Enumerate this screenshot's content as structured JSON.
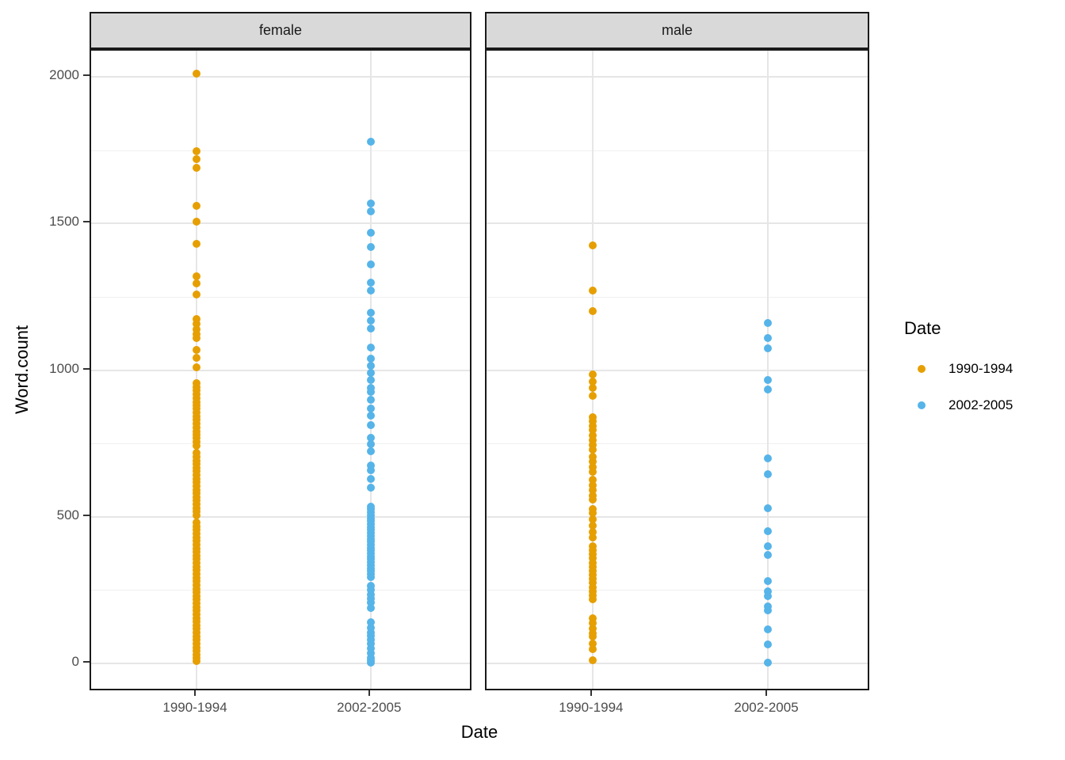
{
  "chart_data": {
    "type": "scatter",
    "title": "",
    "xlabel": "Date",
    "ylabel": "Word.count",
    "categories": [
      "1990-1994",
      "2002-2005"
    ],
    "y_ticks": [
      0,
      500,
      1000,
      1500,
      2000
    ],
    "y_minor_ticks": [
      250,
      750,
      1250,
      1750
    ],
    "ylim": [
      -95,
      2090
    ],
    "grid": "major+minor horizontal, major vertical at categories",
    "legend_position": "right",
    "facets": [
      {
        "label": "female",
        "series": [
          {
            "name": "1990-1994",
            "color": "#E69F00",
            "values": [
              2010,
              1745,
              1718,
              1690,
              1560,
              1505,
              1430,
              1320,
              1295,
              1258,
              1175,
              1158,
              1140,
              1122,
              1108,
              1069,
              1042,
              1010,
              955,
              942,
              930,
              918,
              905,
              892,
              880,
              868,
              855,
              842,
              830,
              818,
              805,
              792,
              780,
              768,
              755,
              742,
              718,
              705,
              692,
              680,
              668,
              655,
              642,
              630,
              618,
              605,
              592,
              580,
              568,
              555,
              542,
              530,
              518,
              505,
              480,
              468,
              455,
              442,
              430,
              418,
              405,
              392,
              380,
              368,
              355,
              342,
              330,
              318,
              305,
              292,
              280,
              268,
              255,
              242,
              230,
              218,
              205,
              192,
              180,
              168,
              155,
              142,
              130,
              118,
              105,
              92,
              80,
              68,
              55,
              42,
              30,
              18,
              8
            ]
          },
          {
            "name": "2002-2005",
            "color": "#56B4E9",
            "values": [
              1780,
              1568,
              1541,
              1468,
              1420,
              1360,
              1298,
              1271,
              1196,
              1169,
              1142,
              1077,
              1040,
              1015,
              990,
              965,
              940,
              925,
              900,
              870,
              845,
              812,
              770,
              748,
              722,
              675,
              658,
              630,
              600,
              535,
              525,
              515,
              505,
              495,
              485,
              475,
              465,
              455,
              445,
              435,
              425,
              415,
              405,
              395,
              385,
              375,
              365,
              355,
              345,
              335,
              325,
              315,
              305,
              295,
              265,
              250,
              235,
              222,
              208,
              190,
              140,
              122,
              105,
              95,
              80,
              68,
              50,
              35,
              20,
              10,
              2
            ]
          }
        ]
      },
      {
        "label": "male",
        "series": [
          {
            "name": "1990-1994",
            "color": "#E69F00",
            "values": [
              1425,
              1271,
              1200,
              985,
              960,
              938,
              912,
              840,
              825,
              810,
              795,
              778,
              762,
              746,
              730,
              705,
              688,
              670,
              652,
              625,
              608,
              590,
              572,
              558,
              525,
              512,
              490,
              470,
              448,
              428,
              400,
              386,
              372,
              358,
              344,
              330,
              316,
              302,
              288,
              274,
              260,
              246,
              232,
              218,
              155,
              138,
              120,
              103,
              92,
              68,
              48,
              10
            ]
          },
          {
            "name": "2002-2005",
            "color": "#56B4E9",
            "values": [
              1160,
              1110,
              1075,
              965,
              935,
              700,
              645,
              530,
              450,
              400,
              370,
              280,
              245,
              230,
              195,
              180,
              115,
              65,
              2
            ]
          }
        ]
      }
    ]
  },
  "legend": {
    "title": "Date",
    "items": [
      {
        "label": "1990-1994",
        "color": "#E69F00"
      },
      {
        "label": "2002-2005",
        "color": "#56B4E9"
      }
    ]
  },
  "colors": {
    "strip_background": "#D9D9D9",
    "panel_border": "#1A1A1A",
    "grid_major": "#E6E6E6",
    "grid_minor": "#F0F0F0",
    "tick_text": "#4D4D4D",
    "orange": "#E69F00",
    "blue": "#56B4E9"
  }
}
